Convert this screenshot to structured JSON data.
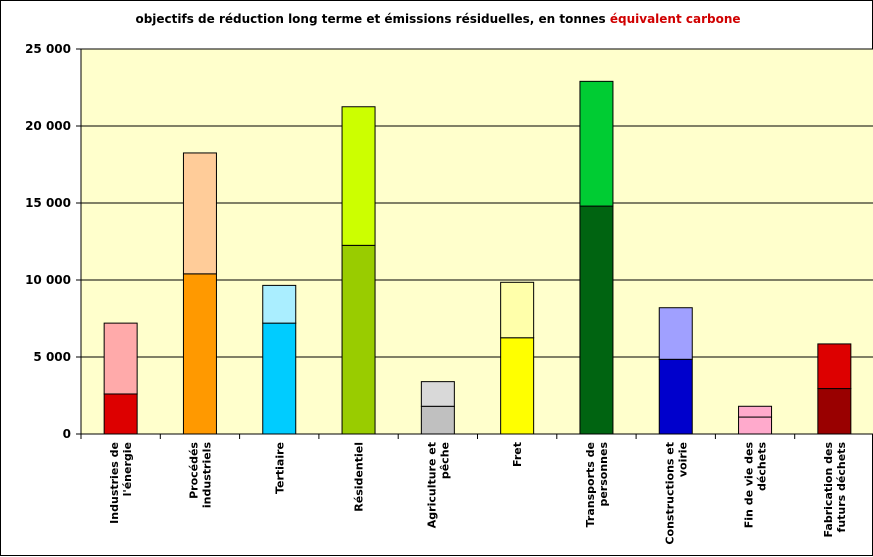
{
  "chart_data": {
    "type": "bar",
    "stacked": true,
    "title_part1": "objectifs de réduction long terme et émissions résiduelles, en tonnes ",
    "title_part2": "équivalent carbone",
    "title_part2_color": "#d00000",
    "ylim": [
      0,
      25000
    ],
    "y_ticks": [
      "0",
      "5 000",
      "10 000",
      "15 000",
      "20 000",
      "25 000"
    ],
    "y_tick_values": [
      0,
      5000,
      10000,
      15000,
      20000,
      25000
    ],
    "grid": true,
    "plot_background": "#ffffcc",
    "categories": [
      [
        "Industries de",
        "l'énergie"
      ],
      [
        "Procédés",
        "industriels"
      ],
      [
        "Tertiaire"
      ],
      [
        "Résidentiel"
      ],
      [
        "Agriculture et",
        "pêche"
      ],
      [
        "Fret"
      ],
      [
        "Transports de",
        "personnes"
      ],
      [
        "Constructions et",
        "voirie"
      ],
      [
        "Fin de vie des",
        "déchets"
      ],
      [
        "Fabrication des",
        "futurs déchets"
      ]
    ],
    "series": [
      {
        "values": [
          2600,
          10400,
          7200,
          12250,
          1800,
          6250,
          14800,
          4850,
          1100,
          2950
        ],
        "colors": [
          "#dd0000",
          "#ff9900",
          "#00ccff",
          "#99cc00",
          "#c0c0c0",
          "#ffff00",
          "#006411",
          "#0000cc",
          "#ffaacc",
          "#990000"
        ]
      },
      {
        "values": [
          4600,
          7850,
          2450,
          9000,
          1600,
          3600,
          8100,
          3350,
          700,
          2900
        ],
        "colors": [
          "#ffaaaa",
          "#ffcc99",
          "#aaeeff",
          "#ccff00",
          "#d9d9d9",
          "#ffffaa",
          "#00cc33",
          "#a0a0ff",
          "#ffaacc",
          "#dd0000"
        ]
      }
    ]
  }
}
